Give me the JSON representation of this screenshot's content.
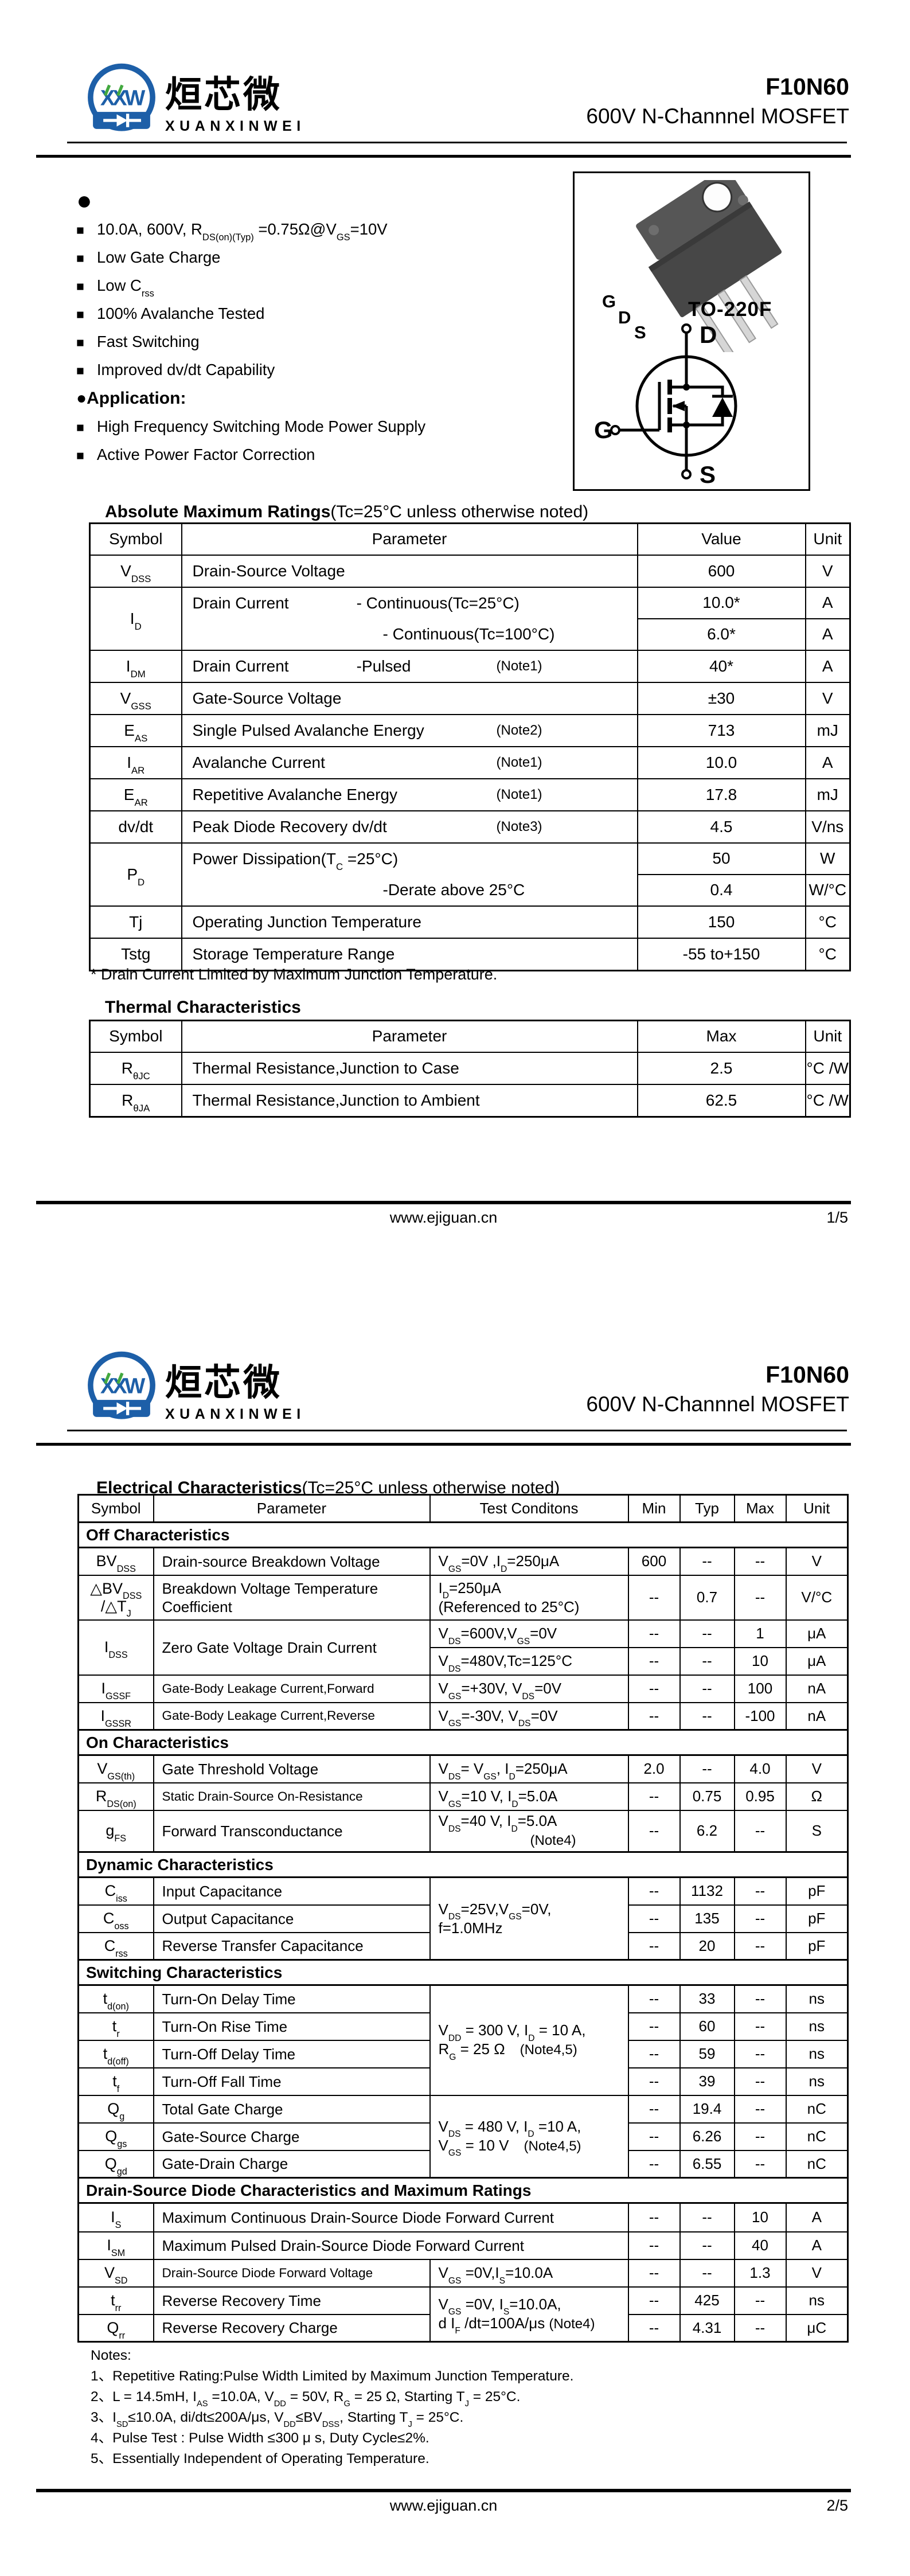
{
  "header": {
    "brand_zh": "烜芯微",
    "brand_en": "XUANXINWEI",
    "part": "F10N60",
    "subtitle": "600V N-Channnel MOSFET"
  },
  "footer": {
    "site": "www.ejiguan.cn"
  },
  "page1": {
    "page_no": "1/5",
    "features_dot": "●",
    "square": "■",
    "features": [
      "10.0A, 600V, R<sub>DS(on)(Typ)</sub> =0.75Ω@V<sub>GS</sub>=10V",
      "Low Gate Charge",
      "Low C<sub>rss</sub>",
      "100% Avalanche Tested",
      "Fast Switching",
      "Improved dv/dt Capability"
    ],
    "application_label": "●Application:",
    "applications": [
      "High Frequency Switching Mode Power Supply",
      "Active Power Factor Correction"
    ],
    "package": {
      "label": "TO-220F",
      "pin_g": "G",
      "pin_d": "D",
      "pin_s": "S",
      "sym_d": "D",
      "sym_g": "G",
      "sym_s": "S"
    },
    "abs": {
      "title": "Absolute Maximum Ratings",
      "title_cond": "(Tc=25°C unless otherwise noted)",
      "headers": [
        "Symbol",
        "Parameter",
        "Value",
        "Unit"
      ],
      "rows": {
        "vdss": {
          "sym": "V<sub>DSS</sub>",
          "param": "Drain-Source Voltage",
          "val": "600",
          "unit": "V"
        },
        "id": {
          "sym": "I<sub>D</sub>",
          "param": "Drain Current<span class='g1'></span>- Continuous(Tc=25°C)<br><span class='i1'></span>- Continuous(Tc=100°C)",
          "val1": "10.0*",
          "unit1": "A",
          "val2": "6.0*",
          "unit2": "A"
        },
        "idm": {
          "sym": "I<sub>DM</sub>",
          "param": "Drain Current<span class='g1'></span>-Pulsed<span class='anote'>(Note1)</span>",
          "val": "40*",
          "unit": "A"
        },
        "vgss": {
          "sym": "V<sub>GSS</sub>",
          "param": "Gate-Source Voltage",
          "val": "±30",
          "unit": "V"
        },
        "eas": {
          "sym": "E<sub>AS</sub>",
          "param": "Single Pulsed Avalanche Energy<span class='anote'>(Note2)</span>",
          "val": "713",
          "unit": "mJ"
        },
        "iar": {
          "sym": "I<sub>AR</sub>",
          "param": "Avalanche Current<span class='anote'>(Note1)</span>",
          "val": "10.0",
          "unit": "A"
        },
        "ear": {
          "sym": "E<sub>AR</sub>",
          "param": "Repetitive Avalanche Energy<span class='anote'>(Note1)</span>",
          "val": "17.8",
          "unit": "mJ"
        },
        "dvdt": {
          "sym": "dv/dt",
          "param": "Peak Diode Recovery dv/dt<span class='anote'>(Note3)</span>",
          "val": "4.5",
          "unit": "V/ns"
        },
        "pd": {
          "sym": "P<sub>D</sub>",
          "param": "Power Dissipation(T<sub>C</sub> =25°C)<br><span class='i1'></span>-Derate above 25°C",
          "val1": "50",
          "unit1": "W",
          "val2": "0.4",
          "unit2": "W/°C"
        },
        "tj": {
          "sym": "Tj",
          "param": "Operating Junction Temperature",
          "val": "150",
          "unit": "°C"
        },
        "tstg": {
          "sym": "Tstg",
          "param": "Storage Temperature Range",
          "val": "-55 to+150",
          "unit": "°C"
        }
      },
      "footnote": "* Drain Current Limited by Maximum Junction Temperature."
    },
    "thermal": {
      "title": "Thermal Characteristics",
      "headers": [
        "Symbol",
        "Parameter",
        "Max",
        "Unit"
      ],
      "rows": {
        "rjc": {
          "sym": "R<sub>θJC</sub>",
          "param": "Thermal Resistance,Junction to Case",
          "val": "2.5",
          "unit": "°C /W"
        },
        "rja": {
          "sym": "R<sub>θJA</sub>",
          "param": "Thermal Resistance,Junction to Ambient",
          "val": "62.5",
          "unit": "°C /W"
        }
      }
    }
  },
  "page2": {
    "page_no": "2/5",
    "elec": {
      "title": "Electrical Characteristics",
      "title_cond": "(Tc=25°C unless otherwise noted)",
      "headers": [
        "Symbol",
        "Parameter",
        "Test Conditons",
        "Min",
        "Typ",
        "Max",
        "Unit"
      ],
      "sections": {
        "off": "Off Characteristics",
        "on": "On Characteristics",
        "dyn": "Dynamic Characteristics",
        "sw": "Switching Characteristics",
        "diode": "Drain-Source Diode Characteristics and Maximum Ratings"
      },
      "rows": {
        "bvdss": {
          "sym": "BV<sub>DSS</sub>",
          "param": "Drain-source Breakdown Voltage",
          "test": "V<sub>GS</sub>=0V ,I<sub>D</sub>=250μA",
          "min": "600",
          "typ": "--",
          "max": "--",
          "unit": "V"
        },
        "dbv": {
          "sym": "△BV<sub>DSS</sub><br>/△T<sub>J</sub>",
          "param": "Breakdown Voltage Temperature<br>Coefficient",
          "test": "I<sub>D</sub>=250μA<br>(Referenced to 25°C)",
          "min": "--",
          "typ": "0.7",
          "max": "--",
          "unit": "V/°C"
        },
        "idss": {
          "sym": "I<sub>DSS</sub>",
          "param": "Zero Gate Voltage Drain Current",
          "test1": "V<sub>DS</sub>=600V,V<sub>GS</sub>=0V",
          "min1": "--",
          "typ1": "--",
          "max1": "1",
          "unit1": "μA",
          "test2": "V<sub>DS</sub>=480V,Tc=125°C",
          "min2": "--",
          "typ2": "--",
          "max2": "10",
          "unit2": "μA"
        },
        "igssf": {
          "sym": "I<sub>GSSF</sub>",
          "param": "Gate-Body Leakage Current,Forward",
          "test": "V<sub>GS</sub>=+30V, V<sub>DS</sub>=0V",
          "min": "--",
          "typ": "--",
          "max": "100",
          "unit": "nA"
        },
        "igssr": {
          "sym": "I<sub>GSSR</sub>",
          "param": "Gate-Body Leakage Current,Reverse",
          "test": "V<sub>GS</sub>=-30V, V<sub>DS</sub>=0V",
          "min": "--",
          "typ": "--",
          "max": "-100",
          "unit": "nA"
        },
        "vgsth": {
          "sym": "V<sub>GS(th)</sub>",
          "param": "Gate Threshold Voltage",
          "test": "V<sub>DS</sub>= V<sub>GS</sub>, I<sub>D</sub>=250μA",
          "min": "2.0",
          "typ": "--",
          "max": "4.0",
          "unit": "V"
        },
        "rdson": {
          "sym": "R<sub>DS(on)</sub>",
          "param": "Static Drain-Source On-Resistance",
          "test": "V<sub>GS</sub>=10 V, I<sub>D</sub>=5.0A",
          "min": "--",
          "typ": "0.75",
          "max": "0.95",
          "unit": "Ω"
        },
        "gfs": {
          "sym": "g<sub>FS</sub>",
          "param": "Forward Transconductance",
          "test": "V<sub>DS</sub>=40 V, I<sub>D</sub>=5.0A<br><span class='nl'>(Note4)</span>",
          "min": "--",
          "typ": "6.2",
          "max": "--",
          "unit": "S"
        },
        "cap_test": "V<sub>DS</sub>=25V,V<sub>GS</sub>=0V,<br>f=1.0MHz",
        "ciss": {
          "sym": "C<sub>iss</sub>",
          "param": "Input Capacitance",
          "min": "--",
          "typ": "1132",
          "max": "--",
          "unit": "pF"
        },
        "coss": {
          "sym": "C<sub>oss</sub>",
          "param": "Output Capacitance",
          "min": "--",
          "typ": "135",
          "max": "--",
          "unit": "pF"
        },
        "crss": {
          "sym": "C<sub>rss</sub>",
          "param": "Reverse Transfer Capacitance",
          "min": "--",
          "typ": "20",
          "max": "--",
          "unit": "pF"
        },
        "sw_test": "V<sub>DD</sub> = 300 V, I<sub>D</sub> = 10 A,<br>R<sub>G</sub> = 25 Ω<span class='ntg'>(Note4,5)</span>",
        "tdon": {
          "sym": "t<sub>d(on)</sub>",
          "param": "Turn-On Delay Time",
          "min": "--",
          "typ": "33",
          "max": "--",
          "unit": "ns"
        },
        "tr": {
          "sym": "t<sub>r</sub>",
          "param": "Turn-On Rise Time",
          "min": "--",
          "typ": "60",
          "max": "--",
          "unit": "ns"
        },
        "tdoff": {
          "sym": "t<sub>d(off)</sub>",
          "param": "Turn-Off Delay Time",
          "min": "--",
          "typ": "59",
          "max": "--",
          "unit": "ns"
        },
        "tf": {
          "sym": "t<sub>f</sub>",
          "param": "Turn-Off Fall Time",
          "min": "--",
          "typ": "39",
          "max": "--",
          "unit": "ns"
        },
        "q_test": "V<sub>DS</sub> = 480 V, I<sub>D</sub> =10 A,<br>V<sub>GS</sub> = 10 V<span class='ntg'>(Note4,5)</span>",
        "qg": {
          "sym": "Q<sub>g</sub>",
          "param": "Total Gate Charge",
          "min": "--",
          "typ": "19.4",
          "max": "--",
          "unit": "nC"
        },
        "qgs": {
          "sym": "Q<sub>gs</sub>",
          "param": "Gate-Source Charge",
          "min": "--",
          "typ": "6.26",
          "max": "--",
          "unit": "nC"
        },
        "qgd": {
          "sym": "Q<sub>gd</sub>",
          "param": "Gate-Drain Charge",
          "min": "--",
          "typ": "6.55",
          "max": "--",
          "unit": "nC"
        },
        "is": {
          "sym": "I<sub>S</sub>",
          "param": "Maximum Continuous Drain-Source Diode Forward Current",
          "min": "--",
          "typ": "--",
          "max": "10",
          "unit": "A"
        },
        "ism": {
          "sym": "I<sub>SM</sub>",
          "param": "Maximum Pulsed Drain-Source Diode Forward Current",
          "min": "--",
          "typ": "--",
          "max": "40",
          "unit": "A"
        },
        "vsd": {
          "sym": "V<sub>SD</sub>",
          "param": "Drain-Source Diode Forward Voltage",
          "test": "V<sub>GS</sub> =0V,I<sub>S</sub>=10.0A",
          "min": "--",
          "typ": "--",
          "max": "1.3",
          "unit": "V"
        },
        "rr_test": "V<sub>GS</sub> =0V, I<sub>S</sub>=10.0A,<br>d I<sub>F</sub> /dt=100A/μs <span class='nt'>(Note4)</span>",
        "trr": {
          "sym": "t<sub>rr</sub>",
          "param": "Reverse Recovery Time",
          "min": "--",
          "typ": "425",
          "max": "--",
          "unit": "ns"
        },
        "qrr": {
          "sym": "Q<sub>rr</sub>",
          "param": "Reverse Recovery Charge",
          "min": "--",
          "typ": "4.31",
          "max": "--",
          "unit": "μC"
        }
      }
    },
    "notes": {
      "label": "Notes:",
      "items": [
        "1、Repetitive Rating:Pulse Width Limited by Maximum Junction Temperature.",
        "2、L = 14.5mH, I<sub>AS</sub> =10.0A, V<sub>DD</sub> = 50V, R<sub>G</sub> = 25 Ω, Starting T<sub>J</sub> = 25°C.",
        "3、I<sub>SD</sub>≤10.0A, di/dt≤200A/μs, V<sub>DD</sub>≤BV<sub>DSS</sub>, Starting T<sub>J</sub> = 25°C.",
        "4、Pulse Test : Pulse Width ≤300 μ s, Duty Cycle≤2%.",
        "5、Essentially Independent of Operating Temperature."
      ]
    }
  }
}
